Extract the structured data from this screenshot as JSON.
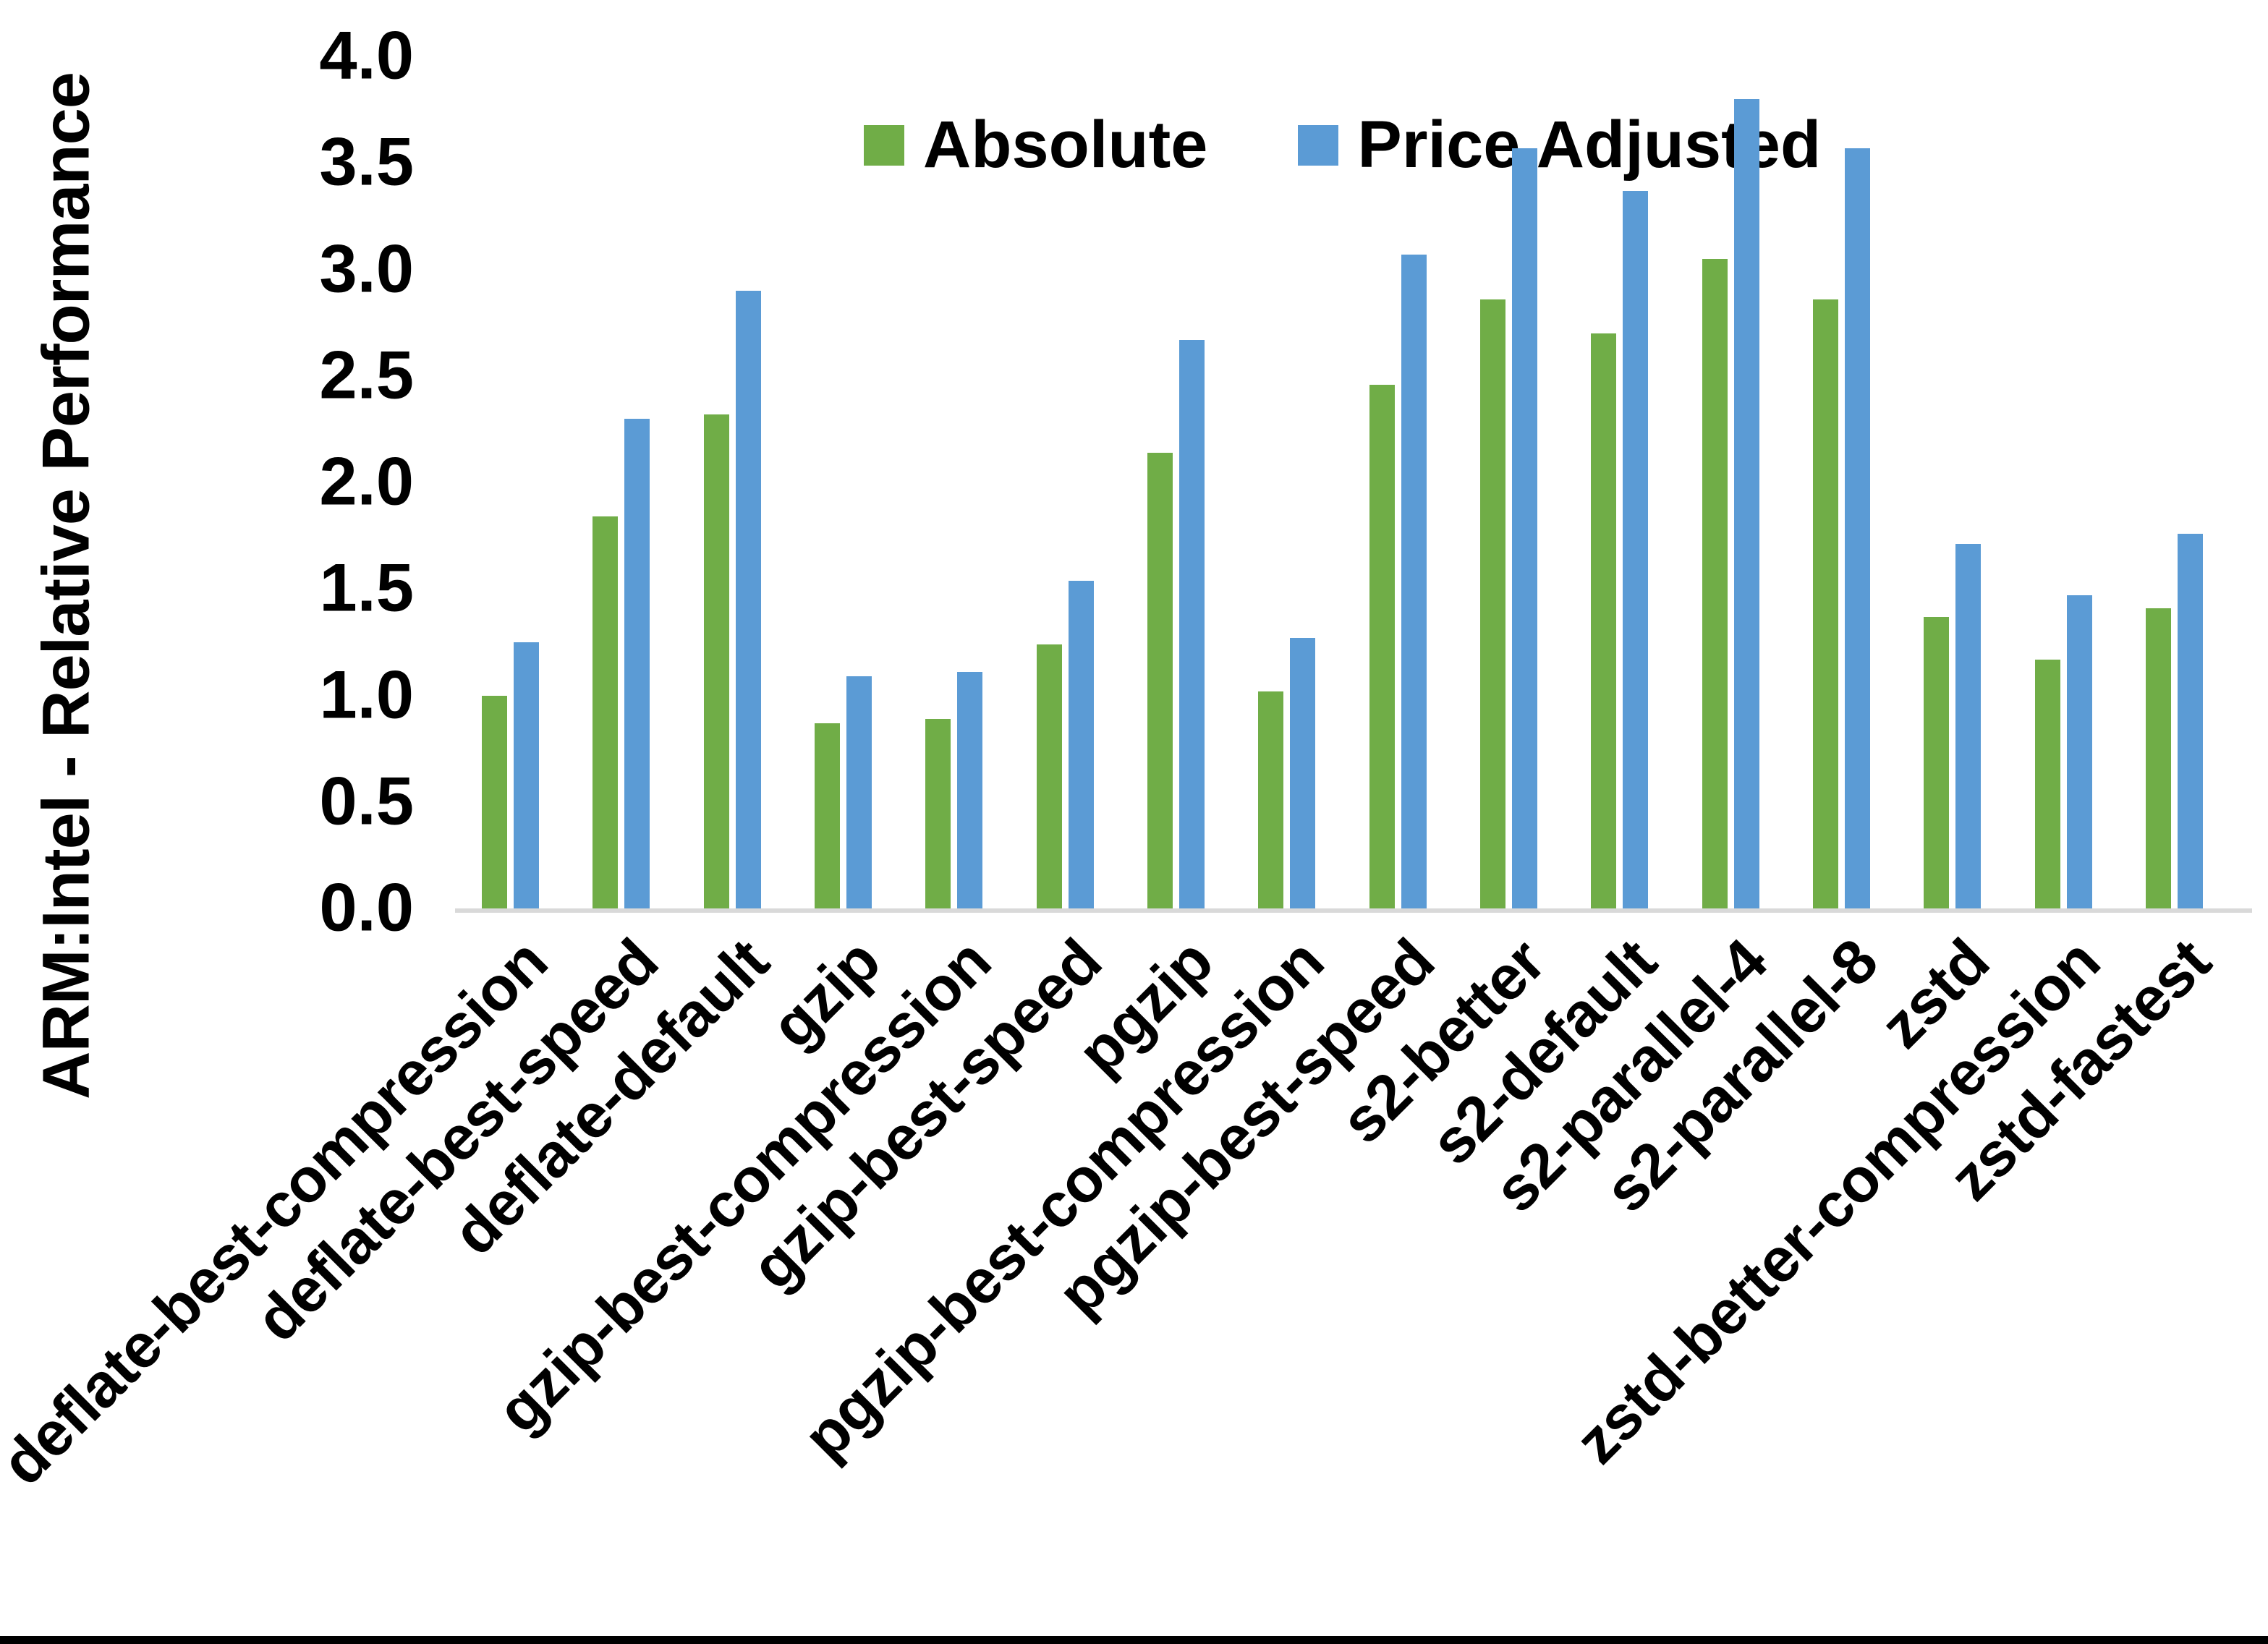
{
  "y_axis": {
    "title": "ARM:Intel - Relative Performance",
    "yticks": [
      "0.0",
      "0.5",
      "1.0",
      "1.5",
      "2.0",
      "2.5",
      "3.0",
      "3.5",
      "4.0"
    ]
  },
  "legend": [
    {
      "label": "Absolute",
      "color": "#70AD47"
    },
    {
      "label": "Price Adjusted",
      "color": "#5B9BD5"
    }
  ],
  "colors": {
    "absolute_green": "#70AD47",
    "price_adjusted_blue": "#5B9BD5",
    "axis_line_gray": "#d9d9d9",
    "bottom_edge_black": "#000000",
    "background": "#ffffff"
  },
  "chart_data": {
    "type": "bar",
    "title": "",
    "xlabel": "",
    "ylabel": "ARM:Intel - Relative Performance",
    "ylim": [
      0.0,
      4.0
    ],
    "ytick_step": 0.5,
    "grid": false,
    "legend_position": "top-center",
    "categories": [
      "deflate-best-compression",
      "deflate-best-speed",
      "deflate-default",
      "gzip",
      "gzip-best-compression",
      "gzip-best-speed",
      "pgzip",
      "pgzip-best-compression",
      "pgzip-best-speed",
      "s2-better",
      "s2-default",
      "s2-parallel-4",
      "s2-parallel-8",
      "zstd",
      "zstd-better-compression",
      "zstd-fastest"
    ],
    "series": [
      {
        "name": "Absolute",
        "color": "#70AD47",
        "values": [
          1.01,
          1.85,
          2.33,
          0.88,
          0.9,
          1.25,
          2.15,
          1.03,
          2.47,
          2.87,
          2.71,
          3.06,
          2.87,
          1.38,
          1.18,
          1.42
        ]
      },
      {
        "name": "Price Adjusted",
        "color": "#5B9BD5",
        "values": [
          1.26,
          2.31,
          2.91,
          1.1,
          1.12,
          1.55,
          2.68,
          1.28,
          3.08,
          3.58,
          3.38,
          3.81,
          3.58,
          1.72,
          1.48,
          1.77
        ]
      }
    ]
  }
}
